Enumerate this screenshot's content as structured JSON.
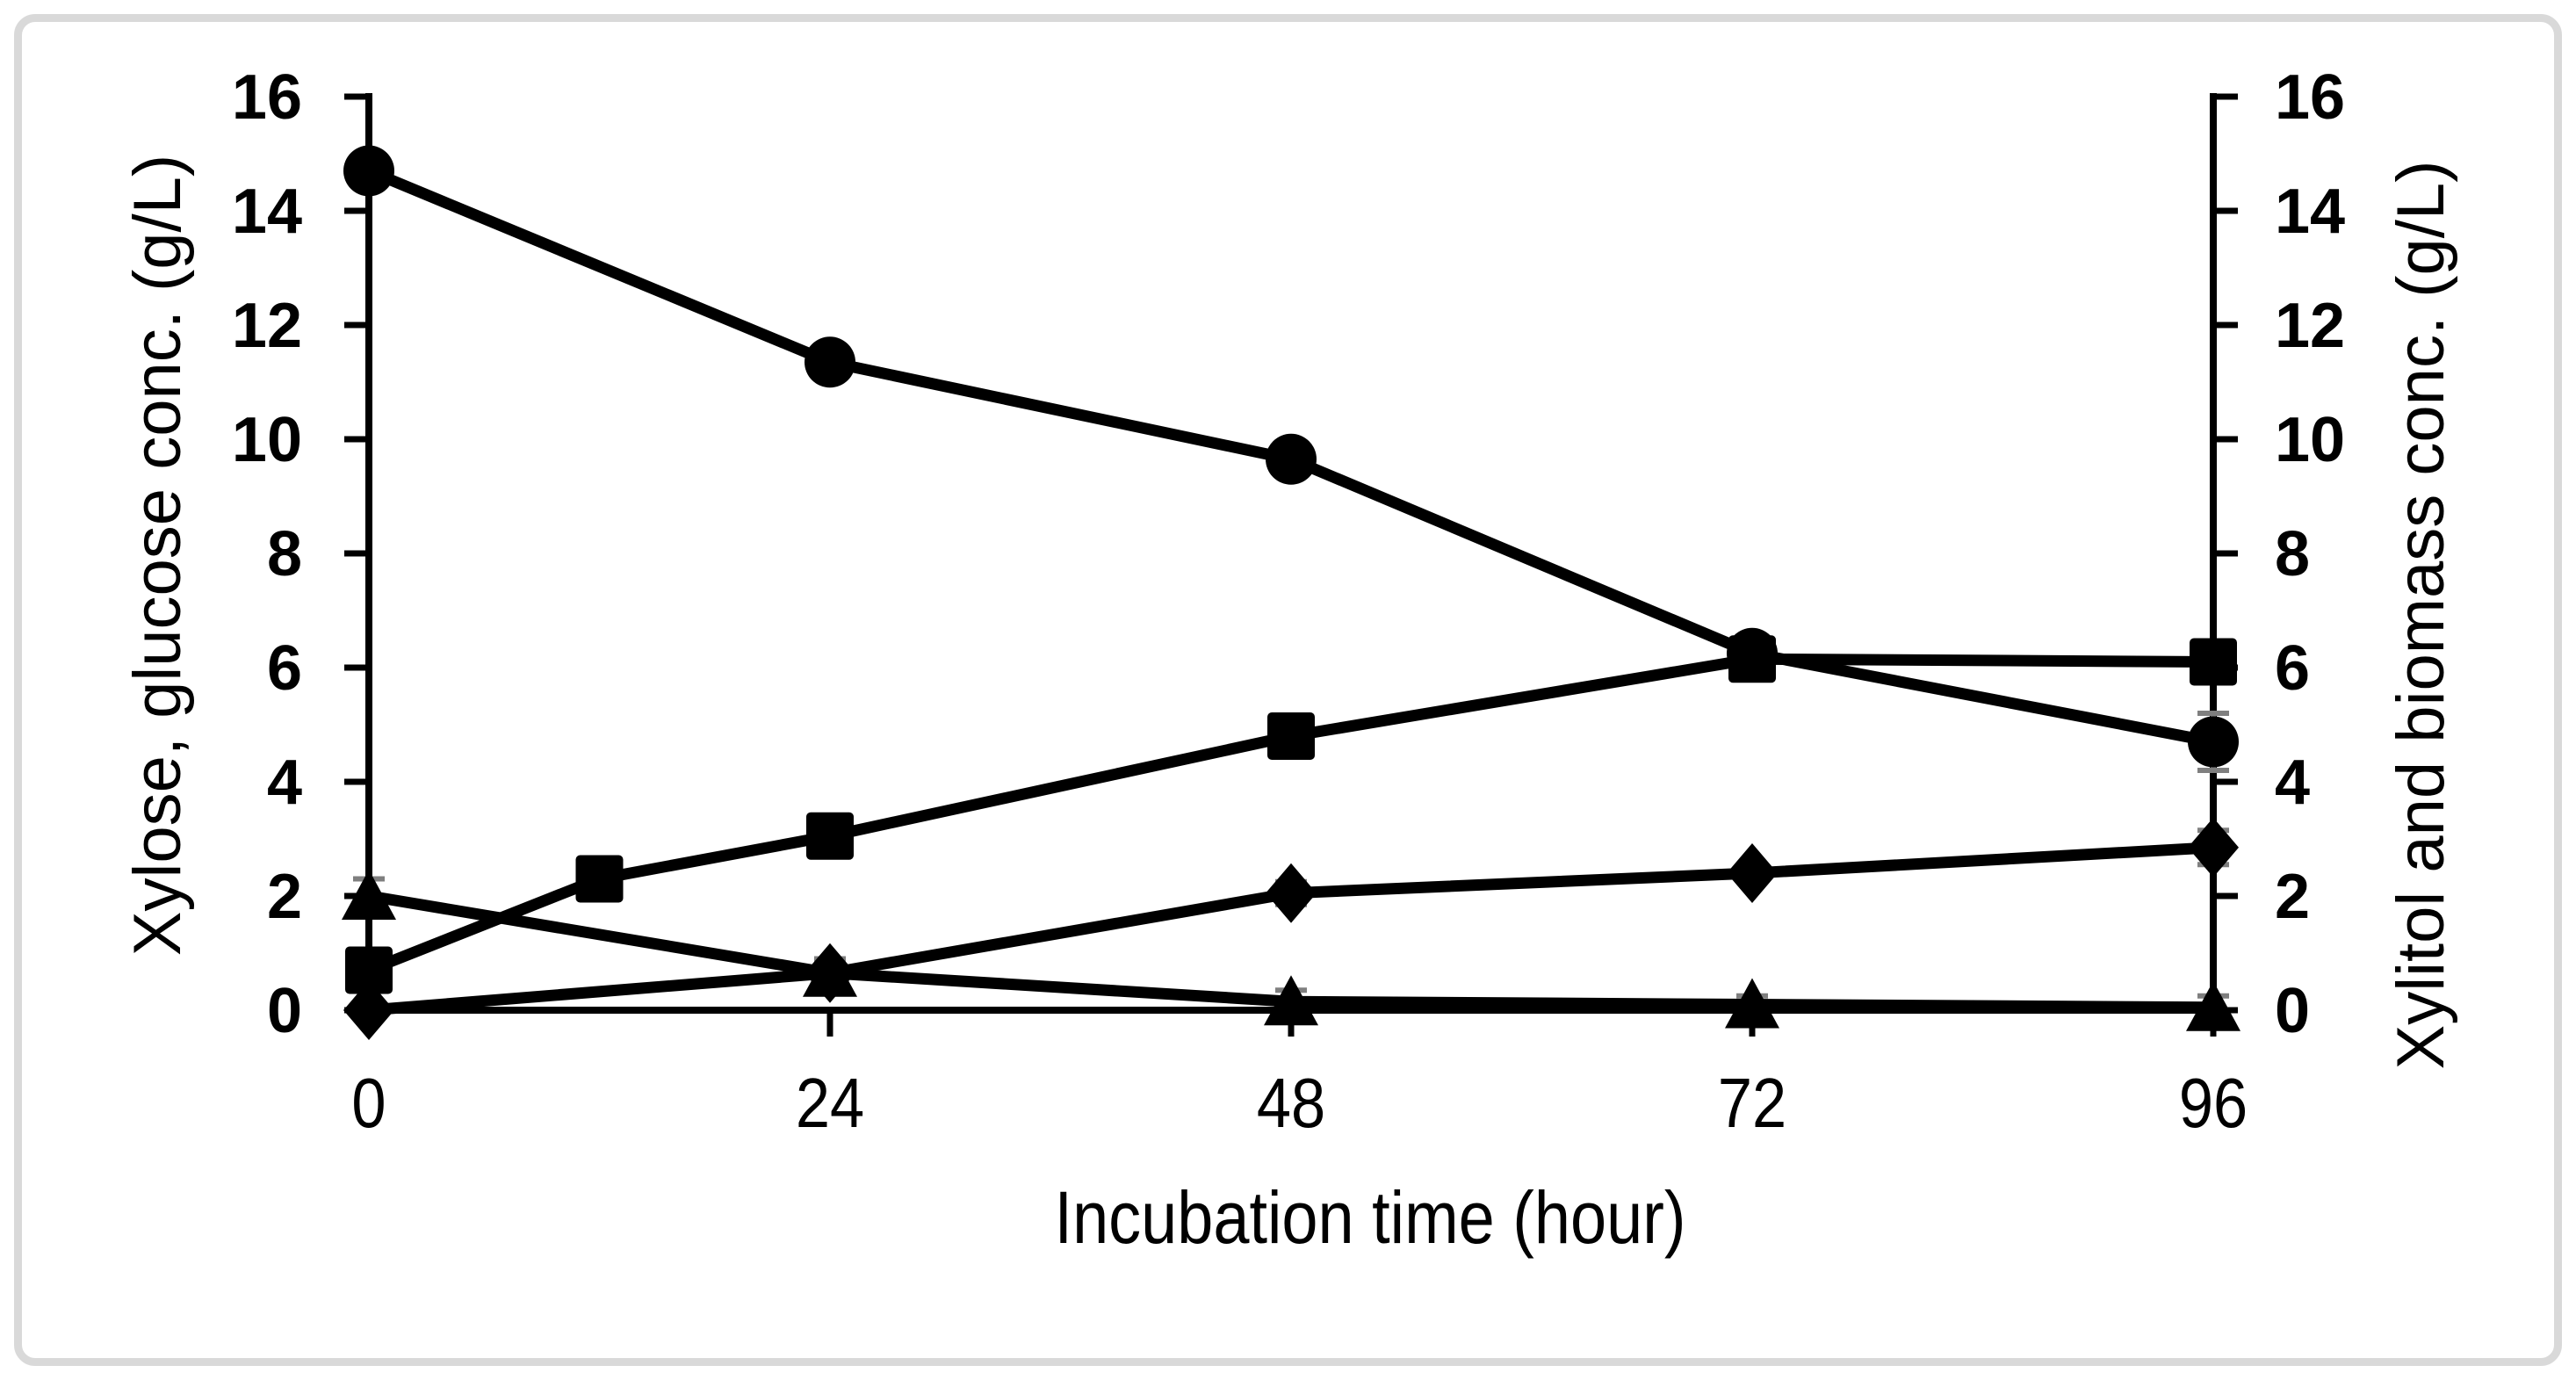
{
  "figure": {
    "background_color": "#ffffff",
    "frame_color": "#d9d9d9",
    "series_color": "#000000",
    "error_bar_color": "#7f7f7f"
  },
  "chart_data": {
    "type": "line",
    "title": "",
    "xlabel": "Incubation time (hour)",
    "ylabel_left": "Xylose, glucose conc. (g/L)",
    "ylabel_right": "Xylitol and biomass conc. (g/L)",
    "xlim": [
      0,
      96
    ],
    "ylim": [
      0,
      16
    ],
    "x_ticks": [
      0,
      24,
      48,
      72,
      96
    ],
    "y_ticks_left": [
      0,
      2,
      4,
      6,
      8,
      10,
      12,
      14,
      16
    ],
    "y_ticks_right": [
      0,
      2,
      4,
      6,
      8,
      10,
      12,
      14,
      16
    ],
    "grid": false,
    "legend": "none",
    "series": [
      {
        "name": "xylose",
        "marker": "circle",
        "axis": "left",
        "x": [
          0,
          24,
          48,
          72,
          96
        ],
        "y": [
          14.7,
          11.35,
          9.65,
          6.25,
          4.7
        ],
        "yerr": [
          0.2,
          0.3,
          0.2,
          0.2,
          0.5
        ]
      },
      {
        "name": "glucose",
        "marker": "triangle",
        "axis": "left",
        "x": [
          0,
          24,
          48,
          72,
          96
        ],
        "y": [
          2.0,
          0.65,
          0.15,
          0.1,
          0.05
        ],
        "yerr": [
          0.3,
          0.2,
          0.2,
          0.15,
          0.2
        ]
      },
      {
        "name": "xylitol",
        "marker": "square",
        "axis": "right",
        "x": [
          0,
          12,
          24,
          48,
          72,
          96
        ],
        "y": [
          0.7,
          2.3,
          3.05,
          4.8,
          6.15,
          6.1
        ],
        "yerr": [
          0.1,
          0.15,
          0.15,
          0.2,
          0.2,
          0.3
        ]
      },
      {
        "name": "biomass",
        "marker": "diamond",
        "axis": "right",
        "x": [
          0,
          24,
          48,
          72,
          96
        ],
        "y": [
          0.0,
          0.65,
          2.05,
          2.4,
          2.85
        ],
        "yerr": [
          0.05,
          0.25,
          0.2,
          0.15,
          0.3
        ]
      }
    ]
  }
}
